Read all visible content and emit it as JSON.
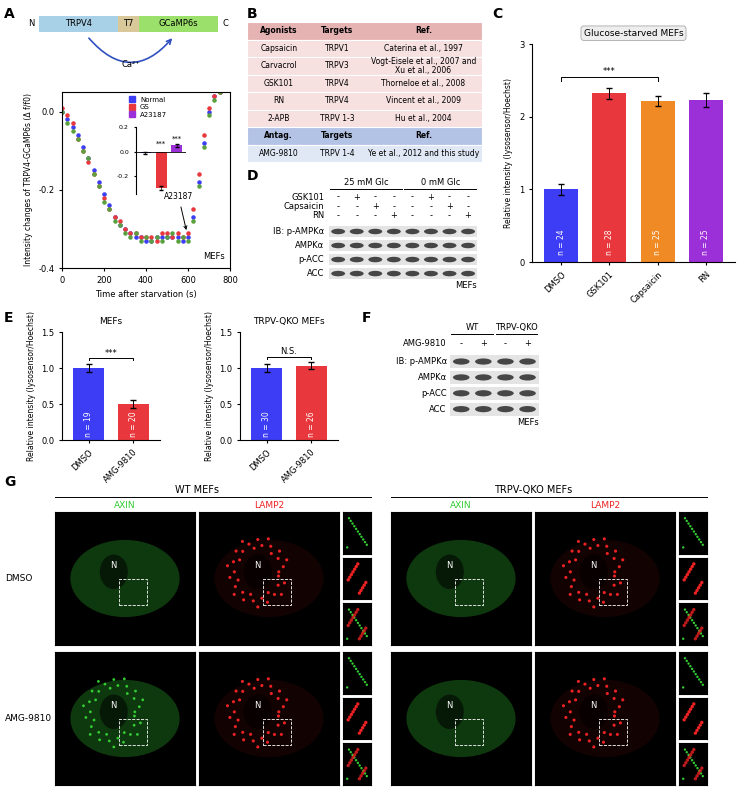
{
  "panel_labels": [
    "A",
    "B",
    "C",
    "D",
    "E",
    "F",
    "G"
  ],
  "schematic": {
    "segments": [
      "N",
      "TRPV4",
      "T7",
      "GCaMP6s",
      "C"
    ],
    "ion": "Ca²⁺"
  },
  "chart_data": [
    {
      "type": "scatter",
      "marker": "o",
      "xlabel": "Time after starvation (s)",
      "ylabel": "Intensity changes of TRPV4-GCaMP6s (Δ f/f0)",
      "x": [
        0,
        25,
        50,
        75,
        100,
        125,
        150,
        175,
        200,
        225,
        250,
        275,
        300,
        325,
        350,
        375,
        400,
        425,
        450,
        475,
        500,
        525,
        550,
        575,
        600,
        625,
        650,
        675,
        700,
        725,
        750
      ],
      "series": [
        {
          "color": "#3d3df5",
          "values": [
            0.0,
            -0.02,
            -0.04,
            -0.06,
            -0.09,
            -0.12,
            -0.15,
            -0.18,
            -0.21,
            -0.24,
            -0.27,
            -0.29,
            -0.3,
            -0.31,
            -0.32,
            -0.32,
            -0.33,
            -0.33,
            -0.32,
            -0.32,
            -0.32,
            -0.32,
            -0.32,
            -0.33,
            -0.32,
            -0.27,
            -0.18,
            -0.08,
            0.0,
            0.04,
            0.05
          ]
        },
        {
          "color": "#e8383d",
          "values": [
            0.01,
            -0.01,
            -0.03,
            -0.07,
            -0.1,
            -0.13,
            -0.16,
            -0.19,
            -0.22,
            -0.25,
            -0.27,
            -0.28,
            -0.3,
            -0.31,
            -0.31,
            -0.32,
            -0.32,
            -0.32,
            -0.33,
            -0.31,
            -0.31,
            -0.32,
            -0.31,
            -0.32,
            -0.31,
            -0.25,
            -0.16,
            -0.06,
            0.01,
            0.04,
            0.05
          ]
        },
        {
          "color": "#5aa03c",
          "values": [
            0.0,
            -0.03,
            -0.05,
            -0.07,
            -0.1,
            -0.12,
            -0.16,
            -0.19,
            -0.23,
            -0.25,
            -0.28,
            -0.29,
            -0.31,
            -0.32,
            -0.31,
            -0.33,
            -0.32,
            -0.33,
            -0.32,
            -0.33,
            -0.32,
            -0.31,
            -0.33,
            -0.32,
            -0.33,
            -0.28,
            -0.19,
            -0.09,
            -0.01,
            0.03,
            0.05
          ]
        }
      ],
      "xlim": [
        0,
        800
      ],
      "xticks": [
        0,
        200,
        400,
        600,
        800
      ],
      "ylim": [
        -0.4,
        0.05
      ],
      "yticks": [
        {
          "value": 0,
          "label": "0.0"
        },
        -0.2,
        -0.4
      ],
      "legend": "upper center",
      "annotations": [
        {
          "text": "A23187",
          "x": 595,
          "y": -0.31
        }
      ],
      "corner_text": "MEFs"
    },
    {
      "type": "bar",
      "categories": [
        "Normal",
        "GS",
        "A23187"
      ],
      "values": [
        -0.01,
        -0.3,
        0.05
      ],
      "errors": [
        0.01,
        0.02,
        0.01
      ],
      "colors": [
        "#3d3df5",
        "#e8383d",
        "#9b30d8"
      ],
      "ylim": [
        -0.35,
        0.2
      ],
      "yticks": [
        0.2,
        {
          "value": 0,
          "label": "0.0"
        },
        -0.2
      ],
      "tick_labels": "y",
      "annotations": [
        {
          "text": "***",
          "category": "GS"
        },
        {
          "text": "***",
          "category": "A23187"
        }
      ]
    },
    {
      "type": "bar",
      "title": "Glucose-starved MEFs",
      "ylabel": "Relative intensity (lysosensor/Hoechst)",
      "categories": [
        "DMSO",
        "GSK101",
        "Capsaicin",
        "RN"
      ],
      "values": [
        1.0,
        2.32,
        2.22,
        2.23
      ],
      "errors": [
        0.08,
        0.08,
        0.07,
        0.1
      ],
      "colors": [
        "#3d3df5",
        "#e8383d",
        "#f08a24",
        "#9b30d8"
      ],
      "bar_texts": [
        "n = 24",
        "n = 28",
        "n = 25",
        "n = 25"
      ],
      "ylim": [
        0,
        3
      ],
      "yticks": [
        0,
        1,
        2,
        3
      ],
      "brackets": [
        {
          "from": "DMSO",
          "to": "Capsaicin",
          "text": "***"
        }
      ]
    },
    {
      "type": "bar",
      "title": "MEFs",
      "ylabel": "Relative intensity (lysosensor/Hoechst)",
      "categories": [
        "DMSO",
        "AMG-9810"
      ],
      "values": [
        1.0,
        0.5
      ],
      "errors": [
        0.06,
        0.06
      ],
      "colors": [
        "#3d3df5",
        "#e8383d"
      ],
      "bar_texts": [
        "n = 19",
        "n = 20"
      ],
      "ylim": [
        0,
        1.5
      ],
      "yticks": [
        {
          "value": 0,
          "label": "0.0"
        },
        0.5,
        {
          "value": 1,
          "label": "1.0"
        },
        1.5
      ],
      "brackets": [
        {
          "from": "DMSO",
          "to": "AMG-9810",
          "text": "***"
        }
      ]
    },
    {
      "type": "bar",
      "title": "TRPV-QKO MEFs",
      "ylabel": "Relative intensity (lysosensor/Hoechst)",
      "categories": [
        "DMSO",
        "AMG-9810"
      ],
      "values": [
        1.0,
        1.03
      ],
      "errors": [
        0.05,
        0.05
      ],
      "colors": [
        "#3d3df5",
        "#e8383d"
      ],
      "bar_texts": [
        "n = 30",
        "n = 26"
      ],
      "ylim": [
        0,
        1.5
      ],
      "yticks": [
        {
          "value": 0,
          "label": "0.0"
        },
        0.5,
        {
          "value": 1,
          "label": "1.0"
        },
        1.5
      ],
      "brackets": [
        {
          "from": "DMSO",
          "to": "AMG-9810",
          "text": "N.S."
        }
      ]
    }
  ],
  "table": {
    "sections": [
      {
        "header": [
          "Agonists",
          "Targets",
          "Ref."
        ],
        "rows": [
          [
            "Capsaicin",
            "TRPV1",
            "Caterina et al., 1997"
          ],
          [
            "Carvacrol",
            "TRPV3",
            "Vogt-Eisele et al., 2007 and Xu et al., 2006"
          ],
          [
            "GSK101",
            "TRPV4",
            "Thorneloe et al., 2008"
          ],
          [
            "RN",
            "TRPV4",
            "Vincent et al., 2009"
          ],
          [
            "2-APB",
            "TRPV 1-3",
            "Hu et al., 2004"
          ]
        ]
      },
      {
        "header": [
          "Antag.",
          "Targets",
          "Ref."
        ],
        "rows": [
          [
            "AMG-9810",
            "TRPV 1-4",
            "Ye et al., 2012 and this study"
          ]
        ]
      }
    ]
  },
  "blots": [
    {
      "groups": [
        {
          "label": "25 mM Glc",
          "lanes": 4
        },
        {
          "label": "0 mM Glc",
          "lanes": 4
        }
      ],
      "treatments": [
        {
          "name": "GSK101",
          "signs": [
            "-",
            "+",
            "-",
            "-",
            "-",
            "+",
            "-",
            "-"
          ]
        },
        {
          "name": "Capsaicin",
          "signs": [
            "-",
            "-",
            "+",
            "-",
            "-",
            "-",
            "+",
            "-"
          ]
        },
        {
          "name": "RN",
          "signs": [
            "-",
            "-",
            "-",
            "+",
            "-",
            "-",
            "-",
            "+"
          ]
        }
      ],
      "rows": [
        "IB: p-AMPKα",
        "AMPKα",
        "p-ACC",
        "ACC"
      ],
      "cell_line": "MEFs"
    },
    {
      "groups": [
        {
          "label": "WT",
          "lanes": 2
        },
        {
          "label": "TRPV-QKO",
          "lanes": 2
        }
      ],
      "treatments": [
        {
          "name": "AMG-9810",
          "signs": [
            "-",
            "+",
            "-",
            "+"
          ]
        }
      ],
      "rows": [
        "IB: p-AMPKα",
        "AMPKα",
        "p-ACC",
        "ACC"
      ],
      "cell_line": "MEFs"
    }
  ],
  "micrographs": {
    "groups": [
      {
        "title": "WT MEFs",
        "channels": [
          "AXIN",
          "LAMP2"
        ]
      },
      {
        "title": "TRPV-QKO MEFs",
        "channels": [
          "AXIN",
          "LAMP2"
        ]
      }
    ],
    "rows": [
      "DMSO",
      "AMG-9810"
    ],
    "nucleus_label": "N"
  }
}
